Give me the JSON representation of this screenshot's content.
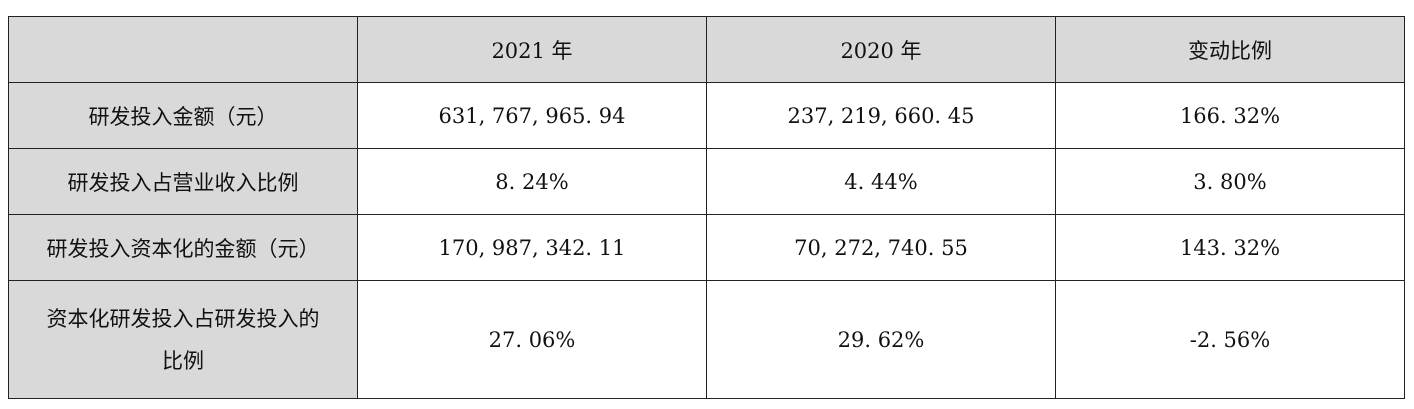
{
  "table": {
    "header": [
      "",
      "2021 年",
      "2020 年",
      "变动比例"
    ],
    "rows": [
      [
        "研发投入金额（元）",
        "631, 767, 965. 94",
        "237, 219, 660. 45",
        "166. 32%"
      ],
      [
        "研发投入占营业收入比例",
        "8. 24%",
        "4. 44%",
        "3. 80%"
      ],
      [
        "研发投入资本化的金额（元）",
        "170, 987, 342. 11",
        "70, 272, 740. 55",
        "143. 32%"
      ],
      [
        "资本化研发投入占研发投入的比例",
        "27. 06%",
        "29. 62%",
        "-2. 56%"
      ]
    ]
  }
}
